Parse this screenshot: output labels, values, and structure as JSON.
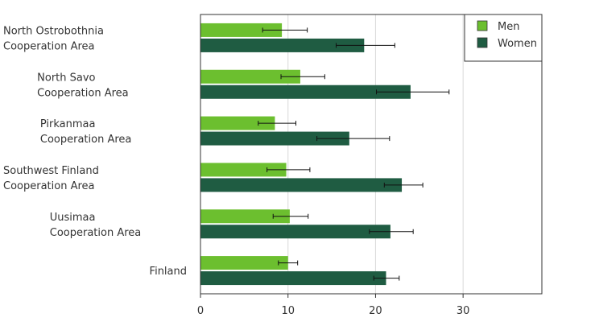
{
  "chart_data": {
    "type": "bar",
    "orientation": "horizontal",
    "categories": [
      [
        "North Ostrobothnia",
        "Cooperation Area"
      ],
      [
        "North Savo",
        "Cooperation Area"
      ],
      [
        "Pirkanmaa",
        "Cooperation Area"
      ],
      [
        "Southwest Finland",
        "Cooperation Area"
      ],
      [
        "Uusimaa",
        "Cooperation Area"
      ],
      [
        "Finland"
      ]
    ],
    "series": [
      {
        "name": "Men",
        "color": "#6cbf2f",
        "values": [
          9.3,
          11.4,
          8.5,
          9.8,
          10.2,
          10.0
        ],
        "error_low": [
          7.1,
          9.2,
          6.6,
          7.6,
          8.3,
          8.9
        ],
        "error_high": [
          12.2,
          14.2,
          10.9,
          12.5,
          12.3,
          11.1
        ]
      },
      {
        "name": "Women",
        "color": "#1f5c42",
        "values": [
          18.7,
          24.0,
          17.0,
          23.0,
          21.7,
          21.2
        ],
        "error_low": [
          15.5,
          20.1,
          13.3,
          21.0,
          19.3,
          19.8
        ],
        "error_high": [
          22.2,
          28.4,
          21.6,
          25.4,
          24.3,
          22.7
        ]
      }
    ],
    "xlim": [
      0,
      39
    ],
    "xticks": [
      0,
      10,
      20,
      30
    ],
    "grid": "vertical",
    "legend": "top-right",
    "title": "",
    "xlabel": "",
    "ylabel": ""
  }
}
